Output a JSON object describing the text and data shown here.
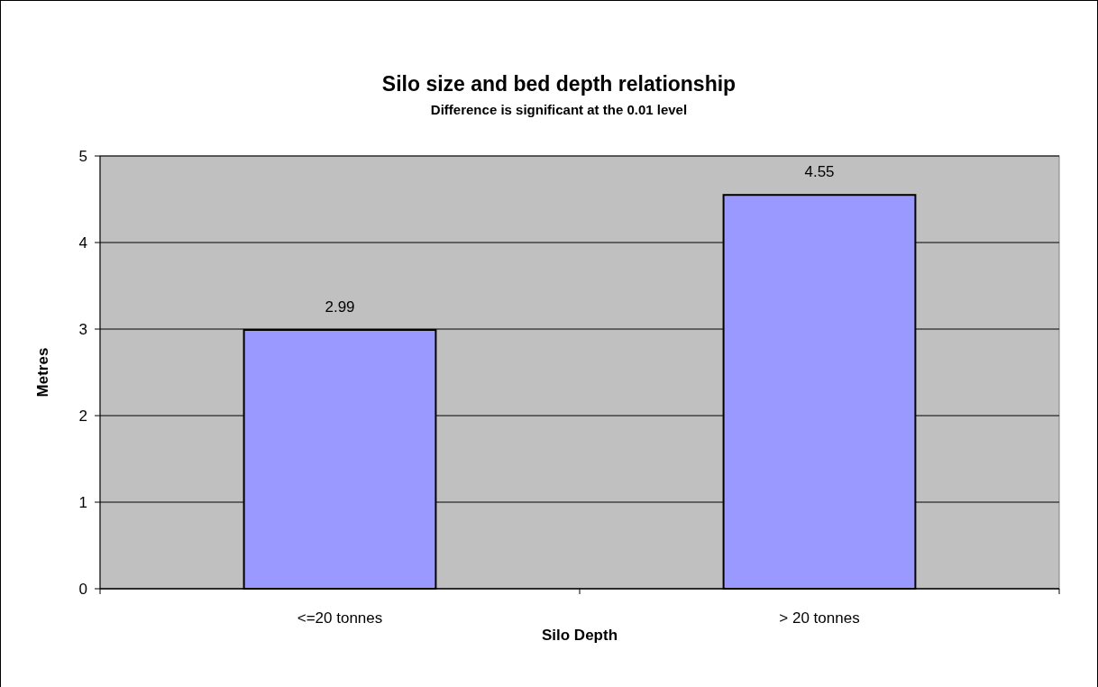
{
  "chart_data": {
    "type": "bar",
    "title": "Silo size and bed depth relationship",
    "subtitle": "Difference is significant at the 0.01 level",
    "xlabel": "Silo Depth",
    "ylabel": "Metres",
    "categories": [
      "<=20 tonnes",
      "> 20 tonnes"
    ],
    "series": [
      {
        "color": "#9999ff",
        "values": [
          2.99,
          4.55
        ]
      }
    ],
    "ylim": [
      0,
      5
    ],
    "yticks": [
      0,
      1,
      2,
      3,
      4,
      5
    ],
    "grid": "y",
    "data_labels": true
  }
}
